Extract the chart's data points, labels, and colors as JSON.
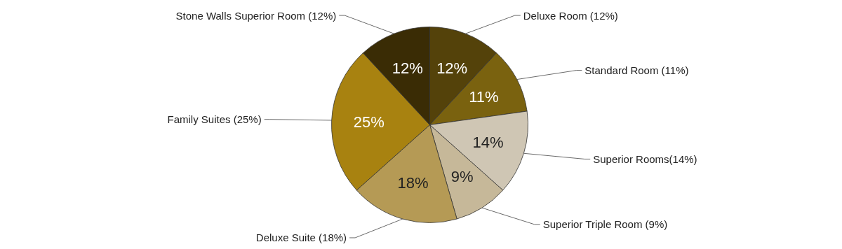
{
  "chart_data": {
    "type": "pie",
    "categories": [
      "Deluxe Room (12%)",
      "Standard Room (11%)",
      "Superior Rooms(14%)",
      "Superior Triple Room (9%)",
      "Deluxe Suite (18%)",
      "Family Suites (25%)",
      "Stone Walls Superior Room (12%)"
    ],
    "values": [
      12,
      11,
      14,
      9,
      18,
      25,
      12
    ],
    "value_labels": [
      "12%",
      "11%",
      "14%",
      "9%",
      "18%",
      "25%",
      "12%"
    ],
    "colors": [
      "#54420a",
      "#7a620f",
      "#cfc6b4",
      "#c6b899",
      "#b59a55",
      "#a88210",
      "#3a2c05"
    ]
  }
}
